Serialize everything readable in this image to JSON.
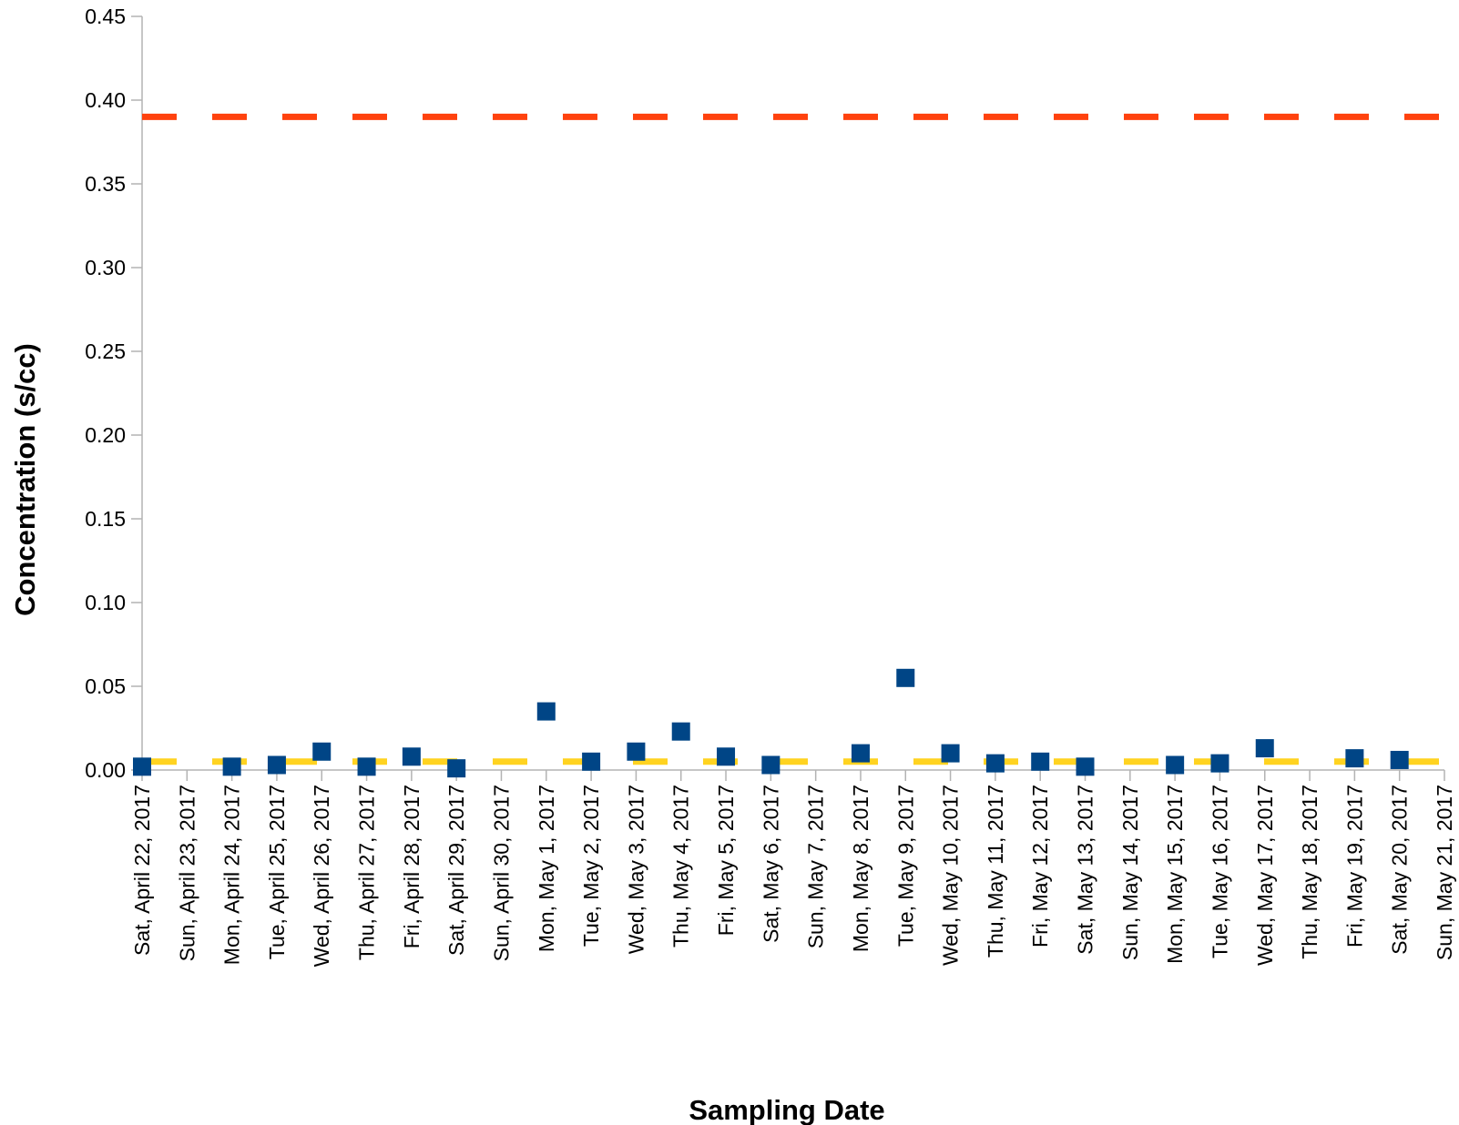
{
  "chart_data": {
    "type": "scatter",
    "title": "",
    "xlabel": "Sampling Date",
    "ylabel": "Concentration (s/cc)",
    "ylim": [
      0,
      0.45
    ],
    "y_ticks": [
      "0.00",
      "0.05",
      "0.10",
      "0.15",
      "0.20",
      "0.25",
      "0.30",
      "0.35",
      "0.40",
      "0.45"
    ],
    "categories": [
      "Sat, April 22, 2017",
      "Sun, April 23, 2017",
      "Mon, April 24, 2017",
      "Tue, April 25, 2017",
      "Wed, April 26, 2017",
      "Thu, April 27, 2017",
      "Fri, April 28, 2017",
      "Sat, April 29, 2017",
      "Sun, April 30, 2017",
      "Mon, May 1, 2017",
      "Tue, May 2, 2017",
      "Wed, May 3, 2017",
      "Thu, May 4, 2017",
      "Fri, May 5, 2017",
      "Sat, May 6, 2017",
      "Sun, May 7, 2017",
      "Mon, May 8, 2017",
      "Tue, May 9, 2017",
      "Wed, May 10, 2017",
      "Thu, May 11, 2017",
      "Fri, May 12, 2017",
      "Sat, May 13, 2017",
      "Sun, May 14, 2017",
      "Mon, May 15, 2017",
      "Tue, May 16, 2017",
      "Wed, May 17, 2017",
      "Thu, May 18, 2017",
      "Fri, May 19, 2017",
      "Sat, May 20, 2017",
      "Sun, May 21, 2017"
    ],
    "series": [
      {
        "type": "scatter",
        "color": "#004586",
        "points": [
          {
            "x": "Sat, April 22, 2017",
            "y": 0.002
          },
          {
            "x": "Mon, April 24, 2017",
            "y": 0.002
          },
          {
            "x": "Tue, April 25, 2017",
            "y": 0.003
          },
          {
            "x": "Wed, April 26, 2017",
            "y": 0.011
          },
          {
            "x": "Thu, April 27, 2017",
            "y": 0.002
          },
          {
            "x": "Fri, April 28, 2017",
            "y": 0.008
          },
          {
            "x": "Sat, April 29, 2017",
            "y": 0.001
          },
          {
            "x": "Mon, May 1, 2017",
            "y": 0.035
          },
          {
            "x": "Tue, May 2, 2017",
            "y": 0.005
          },
          {
            "x": "Wed, May 3, 2017",
            "y": 0.011
          },
          {
            "x": "Thu, May 4, 2017",
            "y": 0.023
          },
          {
            "x": "Fri, May 5, 2017",
            "y": 0.008
          },
          {
            "x": "Sat, May 6, 2017",
            "y": 0.003
          },
          {
            "x": "Mon, May 8, 2017",
            "y": 0.01
          },
          {
            "x": "Tue, May 9, 2017",
            "y": 0.055
          },
          {
            "x": "Wed, May 10, 2017",
            "y": 0.01
          },
          {
            "x": "Thu, May 11, 2017",
            "y": 0.004
          },
          {
            "x": "Fri, May 12, 2017",
            "y": 0.005
          },
          {
            "x": "Sat, May 13, 2017",
            "y": 0.002
          },
          {
            "x": "Mon, May 15, 2017",
            "y": 0.003
          },
          {
            "x": "Tue, May 16, 2017",
            "y": 0.004
          },
          {
            "x": "Wed, May 17, 2017",
            "y": 0.013
          },
          {
            "x": "Fri, May 19, 2017",
            "y": 0.007
          },
          {
            "x": "Sat, May 20, 2017",
            "y": 0.006
          }
        ]
      },
      {
        "type": "hline",
        "style": "dashed",
        "color": "#ff420e",
        "y": 0.39
      },
      {
        "type": "hline",
        "style": "dashed",
        "color": "#ffd320",
        "y": 0.005
      }
    ],
    "grid": false,
    "legend": "none"
  }
}
